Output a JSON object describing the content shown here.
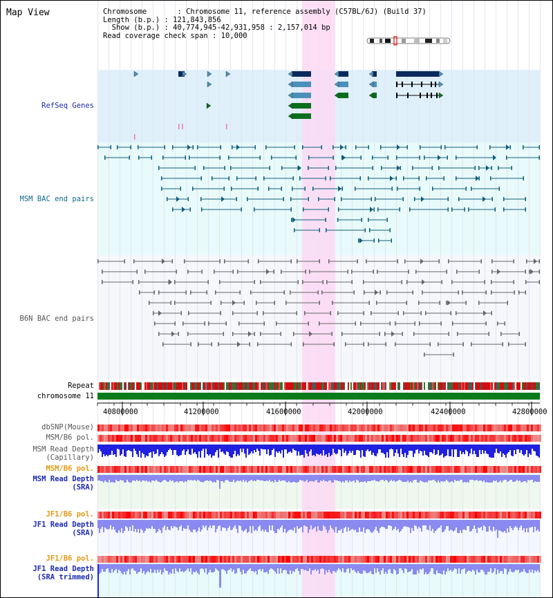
{
  "title": "Map View",
  "info": {
    "chromosome": "Chromosome       : Chromosome 11, reference assembly (C57BL/6J) (Build 37)",
    "length": "Length (b.p.) : 121,843,856",
    "show": "  Show (b.p.) : 40,774,945-42,931,958 : 2,157,014 bp",
    "coverage": "Read coverage check span : 10,000"
  },
  "tracks": {
    "refseq": "RefSeq Genes",
    "msm_bac": "MSM BAC end pairs",
    "b6n_bac": "B6N BAC end pairs",
    "repeat": "Repeat",
    "chromosome": "chromosome 11",
    "dbsnp": "dbSNP(Mouse)",
    "msm_b6_pol": "MSM/B6 pol.",
    "msm_read_depth_cap_1": "MSM Read Depth",
    "msm_read_depth_cap_2": "(Capillary)",
    "msm_b6_pol_sra": "MSM/B6 pol.",
    "msm_read_depth_sra_1": "MSM Read Depth",
    "msm_read_depth_sra_2": "(SRA)",
    "jf1_b6_pol": "JF1/B6 pol.",
    "jf1_read_depth_1": "JF1 Read Depth",
    "jf1_read_depth_2": "(SRA)",
    "jf1_b6_pol_trim": "JF1/B6 pol.",
    "jf1_trim_1": "JF1 Read Depth",
    "jf1_trim_2": "(SRA trimmed)"
  },
  "axis_ticks": [
    "40800000",
    "41200000",
    "41600000",
    "42000000",
    "42400000",
    "42800000"
  ],
  "colors": {
    "refseq_bg": "#dff0fb",
    "msm_bg": "#e8fafa",
    "b6n_bg": "#f5f7fb",
    "highlight": "#fbd9f3",
    "gene_dark": "#0a2a5e",
    "gene_mid": "#4a90b8",
    "gene_green": "#0b6e1d",
    "msm_line": "#0f5f7a",
    "b6n_line": "#666666",
    "chromosome_bar": "#0b7a1a",
    "depth_blue": "#2020e0",
    "depth_light": "#8a8af0",
    "label_blue": "#1b2ab0",
    "label_orange": "#e39a14"
  }
}
